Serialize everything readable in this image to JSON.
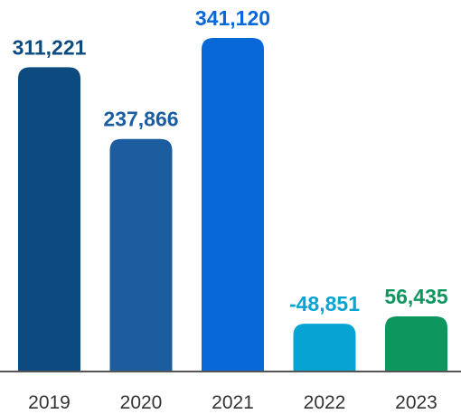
{
  "chart_data": {
    "type": "bar",
    "categories": [
      "2019",
      "2020",
      "2021",
      "2022",
      "2023"
    ],
    "values": [
      311221,
      237866,
      341120,
      -48851,
      56435
    ],
    "data_labels": [
      "311,221",
      "237,866",
      "341,120",
      "-48,851",
      "56,435"
    ],
    "title": "",
    "xlabel": "",
    "ylabel": "",
    "grid": false,
    "legend": "none",
    "colors": {
      "bars": [
        "#0d4a80",
        "#1b5d9e",
        "#0868d8",
        "#07a4d3",
        "#0e965f"
      ],
      "labels": [
        "#0d4a80",
        "#1b5d9e",
        "#0868d8",
        "#07a4d3",
        "#0e965f"
      ],
      "baseline": "#555555"
    }
  }
}
